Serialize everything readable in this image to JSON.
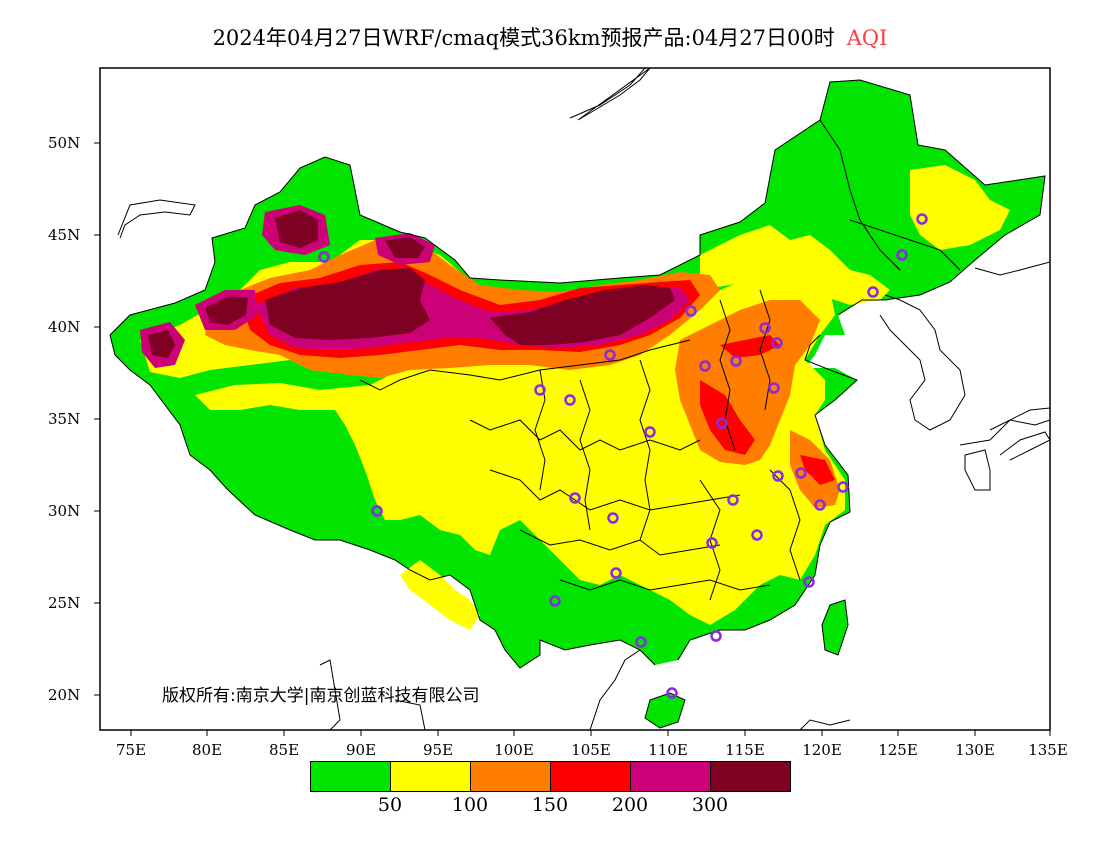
{
  "title": {
    "main": "2024年04月27日WRF/cmaq模式36km预报产品:04月27日00时",
    "highlight": "AQI",
    "highlight_color": "#ff3b3b"
  },
  "lat_labels": [
    "50N",
    "45N",
    "40N",
    "35N",
    "30N",
    "25N",
    "20N"
  ],
  "lon_labels": [
    "75E",
    "80E",
    "85E",
    "90E",
    "95E",
    "100E",
    "105E",
    "110E",
    "115E",
    "120E",
    "125E",
    "130E",
    "135E"
  ],
  "copyright": "版权所有:南京大学|南京创蓝科技有限公司",
  "legend": {
    "colors": [
      "#00e400",
      "#ffff00",
      "#ff7e00",
      "#ff0000",
      "#cc0077",
      "#7e0023"
    ],
    "labels": [
      "50",
      "100",
      "150",
      "200",
      "300"
    ]
  },
  "map": {
    "region": "China",
    "variable": "AQI",
    "color_levels": {
      "good": "#00e400",
      "moderate": "#ffff00",
      "unhealthy_sensitive": "#ff7e00",
      "unhealthy": "#ff0000",
      "very_unhealthy": "#cc0077",
      "hazardous": "#7e0023"
    },
    "city_marker_color": "#8a2be2"
  }
}
